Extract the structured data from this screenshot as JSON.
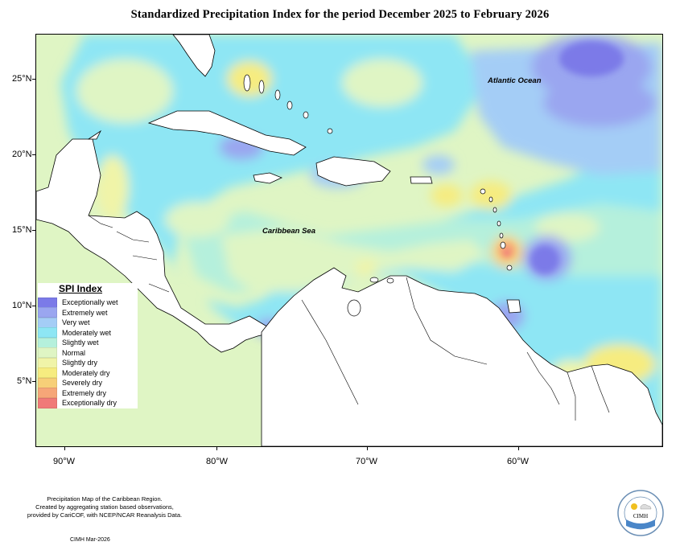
{
  "title": "Standardized Precipitation Index for the period December 2025 to February 2026",
  "labels": {
    "ocean": "Atlantic Ocean",
    "sea": "Caribbean Sea"
  },
  "axes": {
    "lat_ticks": [
      "25°N",
      "20°N",
      "15°N",
      "10°N",
      "5°N"
    ],
    "lon_ticks": [
      "90°W",
      "80°W",
      "70°W",
      "60°W"
    ]
  },
  "legend": {
    "title": "SPI Index",
    "items": [
      {
        "label": "Exceptionally wet",
        "color": "#7b7ae8"
      },
      {
        "label": "Extremely wet",
        "color": "#9aa6f0"
      },
      {
        "label": "Very wet",
        "color": "#a4cdf6"
      },
      {
        "label": "Moderately wet",
        "color": "#8ee6f4"
      },
      {
        "label": "Slightly wet",
        "color": "#b5f0dc"
      },
      {
        "label": "Normal",
        "color": "#dff5c4"
      },
      {
        "label": "Slightly dry",
        "color": "#f0f4a8"
      },
      {
        "label": "Moderately dry",
        "color": "#f6ec80"
      },
      {
        "label": "Severely dry",
        "color": "#f7cf78"
      },
      {
        "label": "Extremely dry",
        "color": "#f6a678"
      },
      {
        "label": "Exceptionally dry",
        "color": "#f07a78"
      }
    ]
  },
  "footnote": {
    "line1": "Precipitation Map of the Caribbean Region.",
    "line2": "Created by aggregating station based observations,",
    "line3": "provided by CariCOF, with NCEP/NCAR Reanalysis Data."
  },
  "credit": "CIMH Mar-2026",
  "logo": {
    "text": "CIMH"
  }
}
